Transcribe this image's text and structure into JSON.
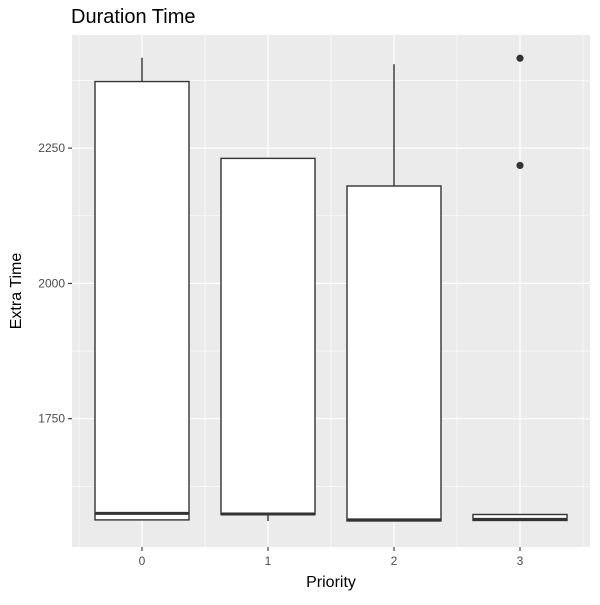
{
  "chart_data": {
    "type": "box",
    "title": "Duration Time",
    "xlabel": "Priority",
    "ylabel": "Extra Time",
    "categories": [
      "0",
      "1",
      "2",
      "3"
    ],
    "y_ticks": [
      1750,
      2000,
      2250
    ],
    "y_tick_labels": [
      "1750",
      "2000",
      "2250"
    ],
    "ylim": [
      1530,
      2450
    ],
    "grid": true,
    "boxes": [
      {
        "category": "0",
        "lower_whisker": 1563,
        "q1": 1563,
        "median": 1575,
        "q3": 2373,
        "upper_whisker": 2417,
        "outliers": []
      },
      {
        "category": "1",
        "lower_whisker": 1561,
        "q1": 1573,
        "median": 1574,
        "q3": 2231,
        "upper_whisker": 2231,
        "outliers": []
      },
      {
        "category": "2",
        "lower_whisker": 1561,
        "q1": 1561,
        "median": 1563,
        "q3": 2180,
        "upper_whisker": 2405,
        "outliers": []
      },
      {
        "category": "3",
        "lower_whisker": 1562,
        "q1": 1562,
        "median": 1564,
        "q3": 1573,
        "upper_whisker": 1573,
        "outliers": [
          2218,
          2416
        ]
      }
    ],
    "colors": {
      "panel_background": "#ebebeb",
      "grid_major": "#ffffff",
      "box_fill": "#ffffff",
      "box_stroke": "#333333"
    }
  }
}
